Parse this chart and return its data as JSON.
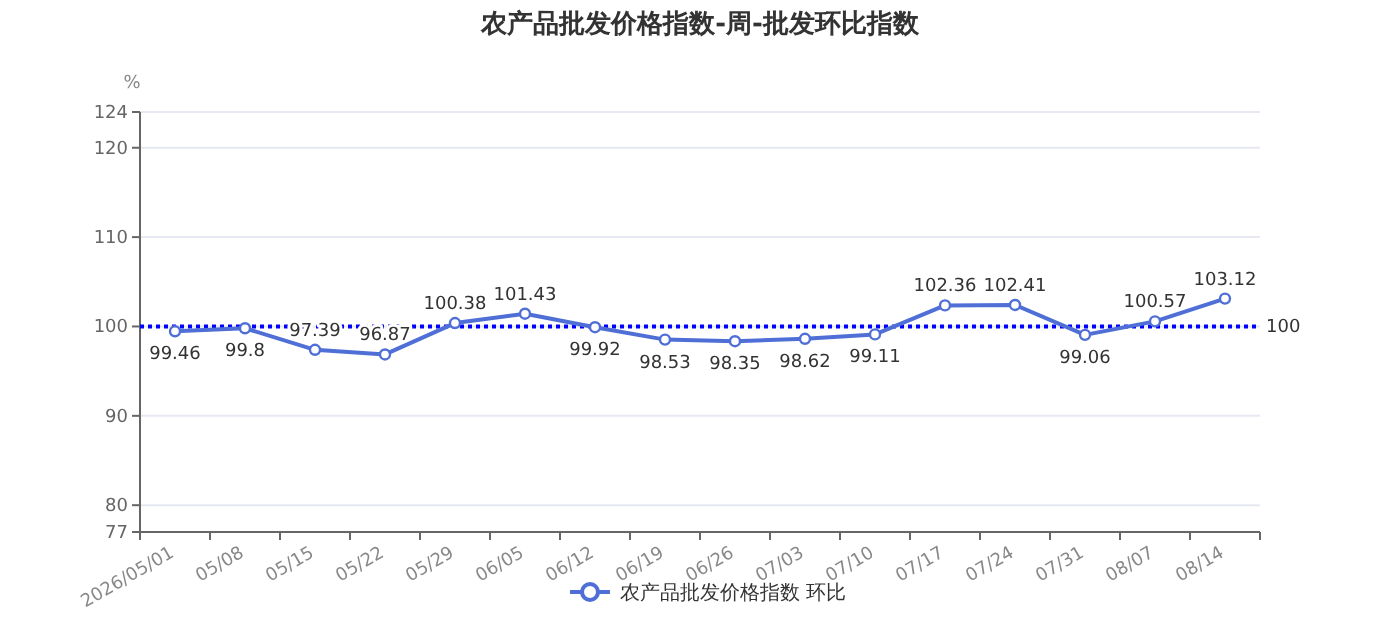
{
  "chart_data": {
    "type": "line",
    "title": "农产品批发价格指数-周-批发环比指数",
    "ylabel": "%",
    "categories": [
      "2026/05/01",
      "05/08",
      "05/15",
      "05/22",
      "05/29",
      "06/05",
      "06/12",
      "06/19",
      "06/26",
      "07/03",
      "07/10",
      "07/17",
      "07/24",
      "07/31",
      "08/07",
      "08/14"
    ],
    "series": [
      {
        "name": "农产品批发价格指数 环比",
        "color": "#4f6fd6",
        "values": [
          99.46,
          99.8,
          97.39,
          96.87,
          100.38,
          101.43,
          99.92,
          98.53,
          98.35,
          98.62,
          99.11,
          102.36,
          102.41,
          99.06,
          100.57,
          103.12
        ]
      }
    ],
    "ylim": [
      77,
      124
    ],
    "yticks": [
      77,
      80,
      90,
      100,
      110,
      120,
      124
    ],
    "ref_lines": [
      {
        "axis": "y",
        "value": 100,
        "label": "100",
        "color": "#0000ff",
        "line_style": "dotted"
      }
    ],
    "data_labels": true,
    "grid": "y",
    "legend": "bottom",
    "marker": "circle",
    "line_style": "solid"
  }
}
